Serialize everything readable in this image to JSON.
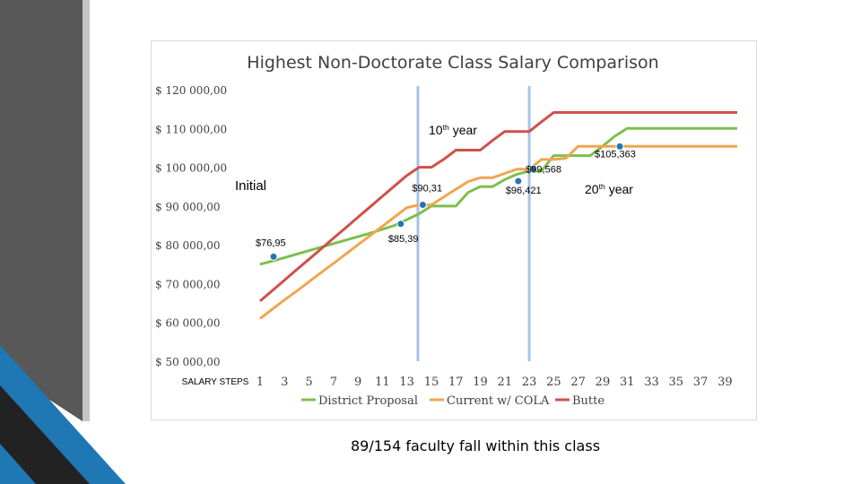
{
  "footer_note": "89/154 faculty fall within this class",
  "colors": {
    "accent_dark": "#3b3b3b",
    "accent_blue": "#1f77b4"
  },
  "chart_data": {
    "type": "line",
    "title": "Highest Non-Doctorate Class Salary Comparison",
    "xlabel": "SALARY STEPS",
    "ylabel": "",
    "ylim": [
      50000,
      120000
    ],
    "xlim": [
      1,
      40
    ],
    "ytick_labels": [
      "$ 50 000,00",
      "$ 60 000,00",
      "$ 70 000,00",
      "$ 80 000,00",
      "$ 90 000,00",
      "$ 100 000,00",
      "$ 110 000,00",
      "$ 120 000,00"
    ],
    "yticks": [
      50000,
      60000,
      70000,
      80000,
      90000,
      100000,
      110000,
      120000
    ],
    "xticks": [
      1,
      3,
      5,
      7,
      9,
      11,
      13,
      15,
      17,
      19,
      21,
      23,
      25,
      27,
      29,
      31,
      33,
      35,
      37,
      39
    ],
    "xtick_labels": [
      "1",
      "3",
      "5",
      "7",
      "9",
      "11",
      "13",
      "15",
      "17",
      "19",
      "21",
      "23",
      "25",
      "27",
      "29",
      "31",
      "33",
      "35",
      "37",
      "39"
    ],
    "series": [
      {
        "name": "District Proposal",
        "color": "#7dbf4e",
        "x": [
          1,
          2,
          3,
          4,
          5,
          6,
          7,
          8,
          9,
          10,
          11,
          12,
          13,
          14,
          15,
          16,
          17,
          18,
          19,
          20,
          21,
          22,
          23,
          24,
          25,
          26,
          27,
          28,
          29,
          30,
          31,
          32,
          33,
          34,
          35,
          36,
          37,
          38,
          39,
          40
        ],
        "y": [
          75000,
          75800,
          76700,
          77600,
          78500,
          79400,
          80300,
          81200,
          82100,
          83000,
          84000,
          85000,
          86500,
          88000,
          90000,
          90000,
          90000,
          93500,
          95000,
          95000,
          96800,
          98200,
          99000,
          99000,
          103000,
          103000,
          103000,
          103000,
          105400,
          108000,
          110000,
          110000,
          110000,
          110000,
          110000,
          110000,
          110000,
          110000,
          110000,
          110000
        ]
      },
      {
        "name": "Current w/ COLA",
        "color": "#f0a650",
        "x": [
          1,
          2,
          3,
          4,
          5,
          6,
          7,
          8,
          9,
          10,
          11,
          12,
          13,
          14,
          15,
          16,
          17,
          18,
          19,
          20,
          21,
          22,
          23,
          24,
          25,
          26,
          27,
          28,
          29,
          30,
          31,
          32,
          33,
          34,
          35,
          36,
          37,
          38,
          39,
          40
        ],
        "y": [
          61000,
          63400,
          65800,
          68100,
          70500,
          72900,
          75200,
          77600,
          80000,
          82400,
          84800,
          87200,
          89600,
          90300,
          90300,
          92300,
          94300,
          96300,
          97300,
          97300,
          98400,
          99500,
          99500,
          102000,
          102000,
          102300,
          105400,
          105400,
          105400,
          105400,
          105400,
          105400,
          105400,
          105400,
          105400,
          105400,
          105400,
          105400,
          105400,
          105400
        ]
      },
      {
        "name": "Butte",
        "color": "#d0504a",
        "x": [
          1,
          2,
          3,
          4,
          5,
          6,
          7,
          8,
          9,
          10,
          11,
          12,
          13,
          14,
          15,
          16,
          17,
          18,
          19,
          20,
          21,
          22,
          23,
          24,
          25,
          26,
          27,
          28,
          29,
          30,
          31,
          32,
          33,
          34,
          35,
          36,
          37,
          38,
          39,
          40
        ],
        "y": [
          65500,
          68200,
          70900,
          73600,
          76300,
          79000,
          81700,
          84400,
          87100,
          89800,
          92500,
          95200,
          97900,
          100000,
          100000,
          102000,
          104400,
          104400,
          104400,
          106900,
          109200,
          109200,
          109200,
          111700,
          114100,
          114100,
          114100,
          114100,
          114100,
          114100,
          114100,
          114100,
          114100,
          114100,
          114100,
          114100,
          114100,
          114100,
          114100,
          114100
        ]
      }
    ],
    "markers": [
      {
        "x": 2.1,
        "y": 76950,
        "label": "$76,95"
      },
      {
        "x": 12.5,
        "y": 85390,
        "label": "$85,39"
      },
      {
        "x": 14.3,
        "y": 90310,
        "label": "$90,31"
      },
      {
        "x": 22.1,
        "y": 96421,
        "label": "$96,421"
      },
      {
        "x": 23.3,
        "y": 99568,
        "label": "$99,568"
      },
      {
        "x": 30.4,
        "y": 105363,
        "label": "$105,363"
      }
    ],
    "vlines": [
      13.9,
      23.0
    ],
    "annotations": [
      {
        "id": "initial",
        "text": "Initial"
      },
      {
        "id": "tenth",
        "text": "10",
        "sup": "th",
        "rest": " year"
      },
      {
        "id": "twentieth",
        "text": "20",
        "sup": "th",
        "rest": " year"
      }
    ]
  }
}
